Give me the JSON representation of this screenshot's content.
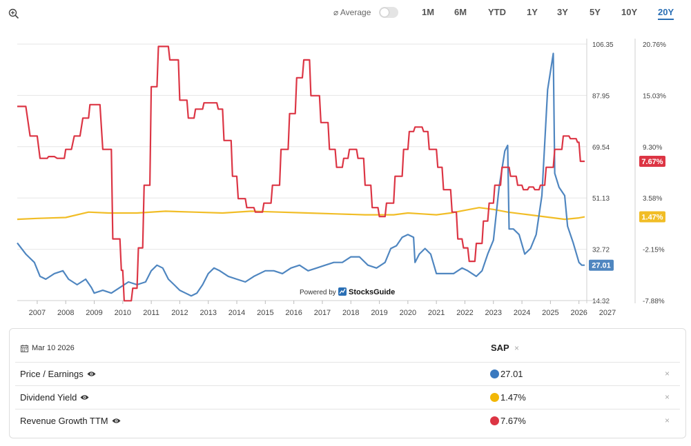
{
  "toolbar": {
    "average_label": "⌀ Average",
    "ranges": [
      "1M",
      "6M",
      "YTD",
      "1Y",
      "3Y",
      "5Y",
      "10Y",
      "20Y"
    ],
    "active_range": "20Y"
  },
  "watermark": "Powered by",
  "watermark_brand": "StocksGuide",
  "colors": {
    "pe": "#4f86c0",
    "dividend": "#f1bd26",
    "growth": "#dc3544",
    "active": "#2a6fb5"
  },
  "chart_data": {
    "type": "line",
    "x_range": [
      2006.3,
      2027.0
    ],
    "x_ticks": [
      "2007",
      "2008",
      "2009",
      "2010",
      "2011",
      "2012",
      "2013",
      "2014",
      "2015",
      "2016",
      "2017",
      "2018",
      "2019",
      "2020",
      "2021",
      "2022",
      "2023",
      "2024",
      "2025",
      "2026",
      "2027"
    ],
    "left_axis": {
      "range": [
        14.32,
        106.35
      ],
      "ticks": [
        "106.35",
        "87.95",
        "69.54",
        "51.13",
        "32.72",
        "14.32"
      ]
    },
    "right_axis": {
      "range": [
        -7.88,
        20.76
      ],
      "ticks": [
        "20.76%",
        "15.03%",
        "9.30%",
        "3.58%",
        "-2.15%",
        "-7.88%"
      ]
    },
    "series": [
      {
        "name": "Price / Earnings",
        "axis": "left",
        "last_label": "27.01",
        "points": [
          [
            2006.3,
            35
          ],
          [
            2006.6,
            31
          ],
          [
            2006.9,
            28
          ],
          [
            2007.1,
            23
          ],
          [
            2007.3,
            22
          ],
          [
            2007.6,
            24
          ],
          [
            2007.9,
            25
          ],
          [
            2008.1,
            22
          ],
          [
            2008.4,
            20
          ],
          [
            2008.7,
            22
          ],
          [
            2008.9,
            19
          ],
          [
            2009.0,
            17
          ],
          [
            2009.3,
            18
          ],
          [
            2009.6,
            17
          ],
          [
            2009.9,
            19
          ],
          [
            2010.2,
            21
          ],
          [
            2010.5,
            20
          ],
          [
            2010.8,
            21
          ],
          [
            2011.0,
            25
          ],
          [
            2011.2,
            27
          ],
          [
            2011.4,
            26
          ],
          [
            2011.6,
            22
          ],
          [
            2011.8,
            20
          ],
          [
            2012.0,
            18
          ],
          [
            2012.2,
            17
          ],
          [
            2012.4,
            16
          ],
          [
            2012.6,
            17
          ],
          [
            2012.8,
            20
          ],
          [
            2013.0,
            24
          ],
          [
            2013.2,
            26
          ],
          [
            2013.4,
            25
          ],
          [
            2013.7,
            23
          ],
          [
            2014.0,
            22
          ],
          [
            2014.3,
            21
          ],
          [
            2014.6,
            23
          ],
          [
            2015.0,
            25
          ],
          [
            2015.3,
            25
          ],
          [
            2015.6,
            24
          ],
          [
            2015.9,
            26
          ],
          [
            2016.2,
            27
          ],
          [
            2016.5,
            25
          ],
          [
            2016.8,
            26
          ],
          [
            2017.1,
            27
          ],
          [
            2017.4,
            28
          ],
          [
            2017.7,
            28
          ],
          [
            2018.0,
            30
          ],
          [
            2018.3,
            30
          ],
          [
            2018.6,
            27
          ],
          [
            2018.9,
            26
          ],
          [
            2019.2,
            28
          ],
          [
            2019.4,
            33
          ],
          [
            2019.6,
            34
          ],
          [
            2019.8,
            37
          ],
          [
            2020.0,
            38
          ],
          [
            2020.2,
            37
          ],
          [
            2020.25,
            28
          ],
          [
            2020.4,
            31
          ],
          [
            2020.6,
            33
          ],
          [
            2020.8,
            31
          ],
          [
            2021.0,
            24
          ],
          [
            2021.3,
            24
          ],
          [
            2021.6,
            24
          ],
          [
            2021.9,
            26
          ],
          [
            2022.1,
            25
          ],
          [
            2022.4,
            23
          ],
          [
            2022.6,
            25
          ],
          [
            2022.8,
            31
          ],
          [
            2023.0,
            36
          ],
          [
            2023.2,
            55
          ],
          [
            2023.4,
            68
          ],
          [
            2023.5,
            70
          ],
          [
            2023.55,
            40
          ],
          [
            2023.7,
            40
          ],
          [
            2023.9,
            38
          ],
          [
            2024.1,
            31
          ],
          [
            2024.3,
            33
          ],
          [
            2024.5,
            38
          ],
          [
            2024.7,
            52
          ],
          [
            2024.9,
            90
          ],
          [
            2025.1,
            103
          ],
          [
            2025.15,
            60
          ],
          [
            2025.3,
            55
          ],
          [
            2025.5,
            52
          ],
          [
            2025.6,
            41
          ],
          [
            2025.8,
            35
          ],
          [
            2026.0,
            28
          ],
          [
            2026.1,
            27
          ],
          [
            2026.2,
            27.01
          ]
        ]
      },
      {
        "name": "Dividend Yield",
        "axis": "right",
        "last_label": "1.47%",
        "points": [
          [
            2006.3,
            1.2
          ],
          [
            2007.0,
            1.3
          ],
          [
            2008.0,
            1.4
          ],
          [
            2008.8,
            2.0
          ],
          [
            2009.5,
            1.9
          ],
          [
            2010.5,
            1.9
          ],
          [
            2011.5,
            2.1
          ],
          [
            2012.5,
            2.0
          ],
          [
            2013.5,
            1.9
          ],
          [
            2014.5,
            2.1
          ],
          [
            2015.5,
            2.0
          ],
          [
            2016.5,
            1.9
          ],
          [
            2017.5,
            1.8
          ],
          [
            2018.5,
            1.7
          ],
          [
            2019.5,
            1.7
          ],
          [
            2020.0,
            1.9
          ],
          [
            2020.5,
            1.8
          ],
          [
            2021.0,
            1.7
          ],
          [
            2021.5,
            1.9
          ],
          [
            2022.0,
            2.2
          ],
          [
            2022.5,
            2.5
          ],
          [
            2023.0,
            2.3
          ],
          [
            2023.5,
            2.0
          ],
          [
            2024.0,
            1.8
          ],
          [
            2024.5,
            1.6
          ],
          [
            2025.0,
            1.4
          ],
          [
            2025.5,
            1.2
          ],
          [
            2026.0,
            1.35
          ],
          [
            2026.2,
            1.47
          ]
        ]
      },
      {
        "name": "Revenue Growth TTM",
        "axis": "right",
        "last_label": "7.67%",
        "points": [
          [
            2006.3,
            13.8
          ],
          [
            2006.6,
            13.8
          ],
          [
            2006.75,
            10.5
          ],
          [
            2007.0,
            10.5
          ],
          [
            2007.1,
            8.0
          ],
          [
            2007.35,
            8.0
          ],
          [
            2007.4,
            8.2
          ],
          [
            2007.6,
            8.2
          ],
          [
            2007.7,
            8.0
          ],
          [
            2007.95,
            8.0
          ],
          [
            2008.0,
            9.0
          ],
          [
            2008.2,
            9.0
          ],
          [
            2008.3,
            10.5
          ],
          [
            2008.5,
            10.5
          ],
          [
            2008.6,
            12.5
          ],
          [
            2008.8,
            12.5
          ],
          [
            2008.85,
            14.0
          ],
          [
            2009.2,
            14.0
          ],
          [
            2009.3,
            9.0
          ],
          [
            2009.6,
            9.0
          ],
          [
            2009.65,
            -1.0
          ],
          [
            2009.9,
            -1.0
          ],
          [
            2009.95,
            -4.5
          ],
          [
            2010.0,
            -4.5
          ],
          [
            2010.05,
            -7.9
          ],
          [
            2010.3,
            -7.9
          ],
          [
            2010.35,
            -6.5
          ],
          [
            2010.5,
            -6.5
          ],
          [
            2010.55,
            -2.0
          ],
          [
            2010.7,
            -2.0
          ],
          [
            2010.75,
            5.0
          ],
          [
            2010.95,
            5.0
          ],
          [
            2011.0,
            16.0
          ],
          [
            2011.2,
            16.0
          ],
          [
            2011.25,
            20.5
          ],
          [
            2011.6,
            20.5
          ],
          [
            2011.65,
            19.0
          ],
          [
            2011.95,
            19.0
          ],
          [
            2012.0,
            14.5
          ],
          [
            2012.25,
            14.5
          ],
          [
            2012.3,
            12.5
          ],
          [
            2012.5,
            12.5
          ],
          [
            2012.55,
            13.5
          ],
          [
            2012.8,
            13.5
          ],
          [
            2012.85,
            14.2
          ],
          [
            2013.3,
            14.2
          ],
          [
            2013.35,
            13.5
          ],
          [
            2013.5,
            13.5
          ],
          [
            2013.55,
            10.0
          ],
          [
            2013.8,
            10.0
          ],
          [
            2013.85,
            6.0
          ],
          [
            2014.0,
            6.0
          ],
          [
            2014.05,
            3.5
          ],
          [
            2014.3,
            3.5
          ],
          [
            2014.35,
            2.5
          ],
          [
            2014.6,
            2.5
          ],
          [
            2014.65,
            2.0
          ],
          [
            2014.9,
            2.0
          ],
          [
            2014.95,
            3.0
          ],
          [
            2015.2,
            3.0
          ],
          [
            2015.25,
            5.0
          ],
          [
            2015.5,
            5.0
          ],
          [
            2015.55,
            9.0
          ],
          [
            2015.8,
            9.0
          ],
          [
            2015.85,
            13.0
          ],
          [
            2016.05,
            13.0
          ],
          [
            2016.1,
            17.0
          ],
          [
            2016.3,
            17.0
          ],
          [
            2016.35,
            19.0
          ],
          [
            2016.55,
            19.0
          ],
          [
            2016.6,
            15.0
          ],
          [
            2016.9,
            15.0
          ],
          [
            2016.95,
            12.0
          ],
          [
            2017.2,
            12.0
          ],
          [
            2017.25,
            9.0
          ],
          [
            2017.45,
            9.0
          ],
          [
            2017.5,
            7.0
          ],
          [
            2017.7,
            7.0
          ],
          [
            2017.75,
            8.0
          ],
          [
            2017.9,
            8.0
          ],
          [
            2017.95,
            9.0
          ],
          [
            2018.2,
            9.0
          ],
          [
            2018.25,
            8.0
          ],
          [
            2018.45,
            8.0
          ],
          [
            2018.5,
            5.0
          ],
          [
            2018.7,
            5.0
          ],
          [
            2018.75,
            2.5
          ],
          [
            2018.95,
            2.5
          ],
          [
            2019.0,
            1.5
          ],
          [
            2019.2,
            1.5
          ],
          [
            2019.25,
            3.0
          ],
          [
            2019.5,
            3.0
          ],
          [
            2019.55,
            6.0
          ],
          [
            2019.8,
            6.0
          ],
          [
            2019.85,
            9.0
          ],
          [
            2020.0,
            9.0
          ],
          [
            2020.05,
            11.0
          ],
          [
            2020.2,
            11.0
          ],
          [
            2020.25,
            11.5
          ],
          [
            2020.5,
            11.5
          ],
          [
            2020.55,
            11.0
          ],
          [
            2020.7,
            11.0
          ],
          [
            2020.75,
            9.0
          ],
          [
            2021.0,
            9.0
          ],
          [
            2021.05,
            7.0
          ],
          [
            2021.2,
            7.0
          ],
          [
            2021.25,
            4.5
          ],
          [
            2021.5,
            4.5
          ],
          [
            2021.55,
            2.0
          ],
          [
            2021.7,
            2.0
          ],
          [
            2021.75,
            -1.0
          ],
          [
            2021.9,
            -1.0
          ],
          [
            2021.95,
            -2.0
          ],
          [
            2022.1,
            -2.0
          ],
          [
            2022.15,
            -3.5
          ],
          [
            2022.35,
            -3.5
          ],
          [
            2022.4,
            -1.5
          ],
          [
            2022.6,
            -1.5
          ],
          [
            2022.65,
            1.0
          ],
          [
            2022.8,
            1.0
          ],
          [
            2022.85,
            3.0
          ],
          [
            2023.0,
            3.0
          ],
          [
            2023.05,
            5.0
          ],
          [
            2023.25,
            5.0
          ],
          [
            2023.3,
            7.0
          ],
          [
            2023.55,
            7.0
          ],
          [
            2023.6,
            6.0
          ],
          [
            2023.8,
            6.0
          ],
          [
            2023.85,
            5.0
          ],
          [
            2024.0,
            5.0
          ],
          [
            2024.05,
            4.5
          ],
          [
            2024.2,
            4.5
          ],
          [
            2024.25,
            4.8
          ],
          [
            2024.4,
            4.8
          ],
          [
            2024.45,
            4.5
          ],
          [
            2024.6,
            4.5
          ],
          [
            2024.65,
            5.0
          ],
          [
            2024.8,
            5.0
          ],
          [
            2024.85,
            7.0
          ],
          [
            2025.1,
            7.0
          ],
          [
            2025.15,
            9.0
          ],
          [
            2025.4,
            9.0
          ],
          [
            2025.45,
            10.5
          ],
          [
            2025.65,
            10.5
          ],
          [
            2025.7,
            10.2
          ],
          [
            2025.9,
            10.2
          ],
          [
            2025.95,
            9.8
          ],
          [
            2026.0,
            9.8
          ],
          [
            2026.05,
            7.67
          ],
          [
            2026.2,
            7.67
          ]
        ]
      }
    ]
  },
  "panel": {
    "date": "Mar 10 2026",
    "ticker": "SAP",
    "close": "×",
    "rows": [
      {
        "label": "Price / Earnings",
        "value": "27.01",
        "color": "#3a79bf"
      },
      {
        "label": "Dividend Yield",
        "value": "1.47%",
        "color": "#f2b705"
      },
      {
        "label": "Revenue Growth TTM",
        "value": "7.67%",
        "color": "#dc3544"
      }
    ]
  }
}
